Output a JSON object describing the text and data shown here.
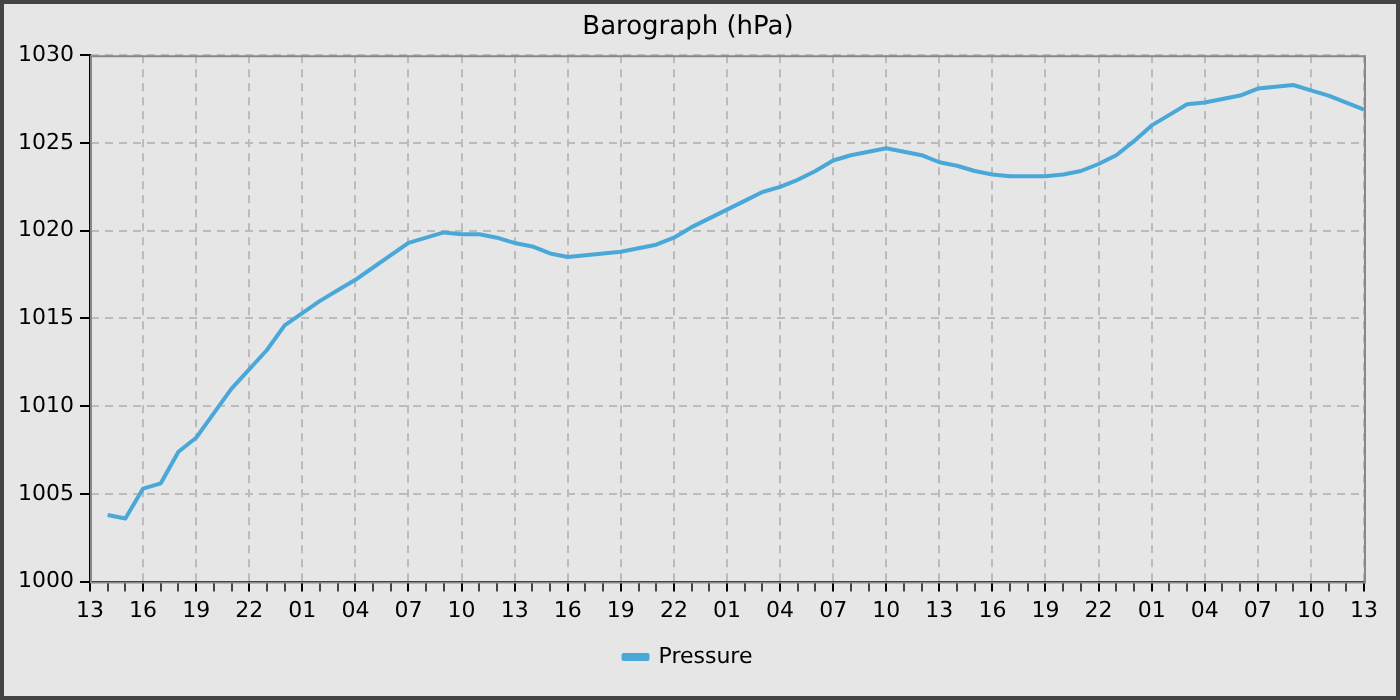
{
  "chart_data": {
    "type": "line",
    "title": "Barograph (hPa)",
    "categories": [
      "13",
      null,
      null,
      "16",
      null,
      null,
      "19",
      null,
      null,
      "22",
      null,
      null,
      "01",
      null,
      null,
      "04",
      null,
      null,
      "07",
      null,
      null,
      "10",
      null,
      null,
      "13",
      null,
      null,
      "16",
      null,
      null,
      "19",
      null,
      null,
      "22",
      null,
      null,
      "01",
      null,
      null,
      "04",
      null,
      null,
      "07",
      null,
      null,
      "10",
      null,
      null,
      "13",
      null,
      null,
      "16",
      null,
      null,
      "19",
      null,
      null,
      "22",
      null,
      null,
      "01",
      null,
      null,
      "04",
      null,
      null,
      "07",
      null,
      null,
      "10",
      null,
      null,
      "13"
    ],
    "series": [
      {
        "name": "Pressure",
        "color": "#4aa8d8",
        "values": [
          null,
          1003.8,
          1003.6,
          1005.3,
          1005.6,
          1007.4,
          1008.2,
          1009.6,
          1011.0,
          1012.1,
          1013.2,
          1014.6,
          1015.3,
          1016.0,
          1016.6,
          1017.2,
          1017.9,
          1018.6,
          1019.3,
          1019.6,
          1019.9,
          1019.8,
          1019.8,
          1019.6,
          1019.3,
          1019.1,
          1018.7,
          1018.5,
          1018.6,
          1018.7,
          1018.8,
          1019.0,
          1019.2,
          1019.6,
          1020.2,
          1020.7,
          1021.2,
          1021.7,
          1022.2,
          1022.5,
          1022.9,
          1023.4,
          1024.0,
          1024.3,
          1024.5,
          1024.7,
          1024.5,
          1024.3,
          1023.9,
          1023.7,
          1023.4,
          1023.2,
          1023.1,
          1023.1,
          1023.1,
          1023.2,
          1023.4,
          1023.8,
          1024.3,
          1025.1,
          1026.0,
          1026.6,
          1027.2,
          1027.3,
          1027.5,
          1027.7,
          1028.1,
          1028.2,
          1028.3,
          1028.0,
          1027.7,
          1027.3,
          1026.9
        ]
      }
    ],
    "ylim": [
      1000,
      1030
    ],
    "yticks": [
      1000,
      1005,
      1010,
      1015,
      1020,
      1025,
      1030
    ],
    "grid": true,
    "legend": "bottom",
    "marker": "none",
    "line_style": "solid"
  }
}
